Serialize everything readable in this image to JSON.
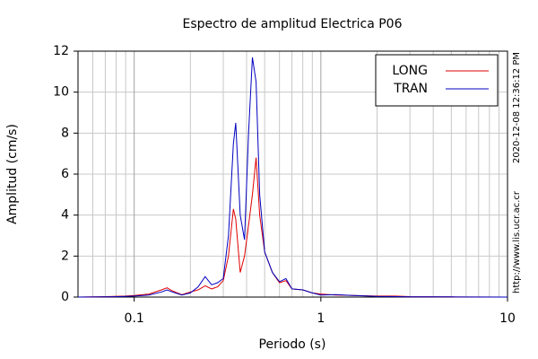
{
  "chart_data": {
    "type": "line",
    "title": "Espectro de amplitud Electrica P06",
    "x_label": "Periodo (s)",
    "y_label": "Amplitud (cm/s)",
    "side_texts": [
      "2020-12-08 12:36:12 PM",
      "http://www.lis.ucr.ac.cr"
    ],
    "x_scale": "log",
    "xlim": [
      0.05,
      10
    ],
    "ylim": [
      0,
      12
    ],
    "xticks": [
      0.1,
      1,
      10
    ],
    "yticks": [
      0,
      2,
      4,
      6,
      8,
      10,
      12
    ],
    "grid": true,
    "legend": "top-right",
    "x": [
      0.05,
      0.07,
      0.09,
      0.1,
      0.12,
      0.14,
      0.15,
      0.16,
      0.18,
      0.2,
      0.22,
      0.24,
      0.26,
      0.28,
      0.3,
      0.32,
      0.34,
      0.35,
      0.37,
      0.39,
      0.41,
      0.43,
      0.45,
      0.47,
      0.5,
      0.55,
      0.6,
      0.65,
      0.7,
      0.8,
      0.9,
      1,
      1.2,
      1.5,
      2,
      2.5,
      3,
      5,
      10
    ],
    "series": [
      {
        "name": "LONG",
        "color": "#e00000",
        "values": [
          0,
          0.02,
          0.05,
          0.08,
          0.15,
          0.35,
          0.45,
          0.3,
          0.12,
          0.25,
          0.35,
          0.55,
          0.4,
          0.5,
          0.8,
          2.0,
          4.3,
          3.8,
          1.2,
          2.0,
          3.5,
          5.0,
          6.8,
          4.0,
          2.2,
          1.2,
          0.7,
          0.8,
          0.4,
          0.35,
          0.2,
          0.15,
          0.1,
          0.08,
          0.05,
          0.05,
          0.02,
          0.01,
          0
        ]
      },
      {
        "name": "TRAN",
        "color": "#0000c0",
        "values": [
          0,
          0.01,
          0.03,
          0.05,
          0.1,
          0.25,
          0.35,
          0.25,
          0.1,
          0.2,
          0.5,
          1.0,
          0.6,
          0.7,
          0.9,
          3.0,
          7.5,
          8.5,
          4.0,
          2.8,
          8.0,
          11.7,
          10.5,
          5.0,
          2.2,
          1.2,
          0.75,
          0.9,
          0.4,
          0.35,
          0.2,
          0.1,
          0.12,
          0.08,
          0.03,
          0.02,
          0.01,
          0.01,
          0
        ]
      }
    ]
  }
}
